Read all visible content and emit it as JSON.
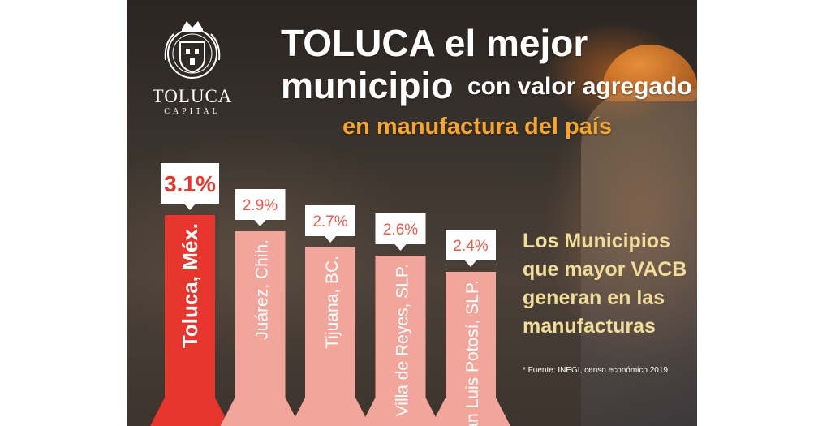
{
  "brand": {
    "name": "TOLUCA",
    "tagline": "CAPITAL"
  },
  "headline": {
    "line1": "TOLUCA el mejor",
    "line2_bold": "municipio",
    "line2_rest": "con valor agregado",
    "line3": "en manufactura del país"
  },
  "side_text": [
    "Los Municipios",
    "que mayor VACB",
    "generan en las",
    "manufacturas"
  ],
  "source": "* Fuente: INEGI, censo económico 2019",
  "colors": {
    "highlight_bar": "#e8352d",
    "other_bar": "#f2a59b",
    "callout_text_highlight": "#e8352d",
    "callout_text": "#e85b4f",
    "subtitle": "#f7a52f",
    "side_text": "#f2dc9a"
  },
  "chart_data": {
    "type": "bar",
    "categories": [
      "Toluca, Méx.",
      "Juárez, Chih.",
      "Tijuana, BC.",
      "Villa de Reyes, SLP.",
      "San Luis Potosí, SLP."
    ],
    "values": [
      3.1,
      2.9,
      2.7,
      2.6,
      2.4
    ],
    "value_labels": [
      "3.1%",
      "2.9%",
      "2.7%",
      "2.6%",
      "2.4%"
    ],
    "highlight_index": 0,
    "title": "TOLUCA el mejor municipio con valor agregado en manufactura del país"
  }
}
